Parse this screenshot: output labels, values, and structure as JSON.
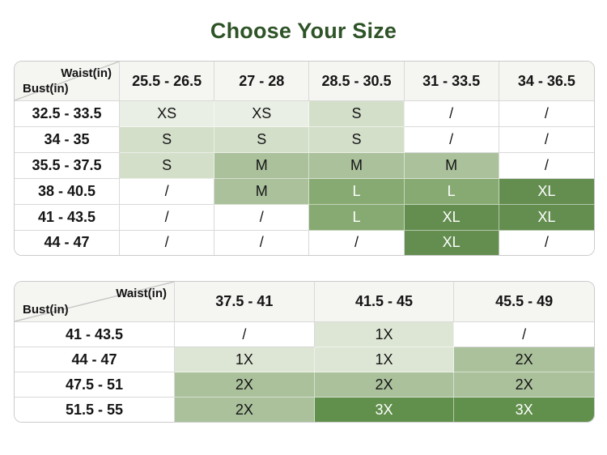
{
  "title": "Choose Your Size",
  "theme": {
    "title_color": "#2e5327",
    "header_bg": "#f5f5f2",
    "border_outer": "#cbcbcb",
    "border_inner": "#d9d9d9",
    "border_on_green": "rgba(255,255,255,0.5)",
    "text_dark": "#151515",
    "text_light": "#ffffff"
  },
  "palette": {
    "none": {
      "bg": "#ffffff",
      "text": "#151515"
    },
    "xs": {
      "bg": "#e9efe4",
      "text": "#151515"
    },
    "s": {
      "bg": "#d4dfca",
      "text": "#151515"
    },
    "m": {
      "bg": "#aac19c",
      "text": "#151515"
    },
    "l": {
      "bg": "#87aa72",
      "text": "#ffffff"
    },
    "xl": {
      "bg": "#648e50",
      "text": "#ffffff"
    },
    "x1": {
      "bg": "#dde6d4",
      "text": "#151515"
    },
    "x2": {
      "bg": "#aac19c",
      "text": "#151515"
    },
    "x3": {
      "bg": "#61904c",
      "text": "#ffffff"
    }
  },
  "tables": [
    {
      "name": "regular-sizes",
      "corner": {
        "top": "Waist(in)",
        "bottom": "Bust(in)"
      },
      "columns": [
        "25.5 - 26.5",
        "27 - 28",
        "28.5 - 30.5",
        "31 - 33.5",
        "34 - 36.5"
      ],
      "rows": [
        {
          "label": "32.5 - 33.5",
          "cells": [
            {
              "text": "XS",
              "tone": "xs"
            },
            {
              "text": "XS",
              "tone": "xs"
            },
            {
              "text": "S",
              "tone": "s"
            },
            {
              "text": "/",
              "tone": "none"
            },
            {
              "text": "/",
              "tone": "none"
            }
          ]
        },
        {
          "label": "34 - 35",
          "cells": [
            {
              "text": "S",
              "tone": "s"
            },
            {
              "text": "S",
              "tone": "s"
            },
            {
              "text": "S",
              "tone": "s"
            },
            {
              "text": "/",
              "tone": "none"
            },
            {
              "text": "/",
              "tone": "none"
            }
          ]
        },
        {
          "label": "35.5 - 37.5",
          "cells": [
            {
              "text": "S",
              "tone": "s"
            },
            {
              "text": "M",
              "tone": "m"
            },
            {
              "text": "M",
              "tone": "m"
            },
            {
              "text": "M",
              "tone": "m"
            },
            {
              "text": "/",
              "tone": "none"
            }
          ]
        },
        {
          "label": "38 - 40.5",
          "cells": [
            {
              "text": "/",
              "tone": "none"
            },
            {
              "text": "M",
              "tone": "m"
            },
            {
              "text": "L",
              "tone": "l"
            },
            {
              "text": "L",
              "tone": "l"
            },
            {
              "text": "XL",
              "tone": "xl"
            }
          ]
        },
        {
          "label": "41 - 43.5",
          "cells": [
            {
              "text": "/",
              "tone": "none"
            },
            {
              "text": "/",
              "tone": "none"
            },
            {
              "text": "L",
              "tone": "l"
            },
            {
              "text": "XL",
              "tone": "xl"
            },
            {
              "text": "XL",
              "tone": "xl"
            }
          ]
        },
        {
          "label": "44 - 47",
          "cells": [
            {
              "text": "/",
              "tone": "none"
            },
            {
              "text": "/",
              "tone": "none"
            },
            {
              "text": "/",
              "tone": "none"
            },
            {
              "text": "XL",
              "tone": "xl"
            },
            {
              "text": "/",
              "tone": "none"
            }
          ]
        }
      ]
    },
    {
      "name": "plus-sizes",
      "corner": {
        "top": "Waist(in)",
        "bottom": "Bust(in)"
      },
      "columns": [
        "37.5 - 41",
        "41.5 - 45",
        "45.5 - 49"
      ],
      "rows": [
        {
          "label": "41 - 43.5",
          "cells": [
            {
              "text": "/",
              "tone": "none"
            },
            {
              "text": "1X",
              "tone": "x1"
            },
            {
              "text": "/",
              "tone": "none"
            }
          ]
        },
        {
          "label": "44 - 47",
          "cells": [
            {
              "text": "1X",
              "tone": "x1"
            },
            {
              "text": "1X",
              "tone": "x1"
            },
            {
              "text": "2X",
              "tone": "x2"
            }
          ]
        },
        {
          "label": "47.5 - 51",
          "cells": [
            {
              "text": "2X",
              "tone": "x2"
            },
            {
              "text": "2X",
              "tone": "x2"
            },
            {
              "text": "2X",
              "tone": "x2"
            }
          ]
        },
        {
          "label": "51.5 - 55",
          "cells": [
            {
              "text": "2X",
              "tone": "x2"
            },
            {
              "text": "3X",
              "tone": "x3"
            },
            {
              "text": "3X",
              "tone": "x3"
            }
          ]
        }
      ]
    }
  ],
  "chart_data": [
    {
      "type": "table",
      "title": "Choose Your Size",
      "corner_labels": [
        "Waist(in)",
        "Bust(in)"
      ],
      "columns_waist_in": [
        "25.5 - 26.5",
        "27 - 28",
        "28.5 - 30.5",
        "31 - 33.5",
        "34 - 36.5"
      ],
      "rows_bust_in": [
        "32.5 - 33.5",
        "34 - 35",
        "35.5 - 37.5",
        "38 - 40.5",
        "41 - 43.5",
        "44 - 47"
      ],
      "values": [
        [
          "XS",
          "XS",
          "S",
          "/",
          "/"
        ],
        [
          "S",
          "S",
          "S",
          "/",
          "/"
        ],
        [
          "S",
          "M",
          "M",
          "M",
          "/"
        ],
        [
          "/",
          "M",
          "L",
          "L",
          "XL"
        ],
        [
          "/",
          "/",
          "L",
          "XL",
          "XL"
        ],
        [
          "/",
          "/",
          "/",
          "XL",
          "/"
        ]
      ]
    },
    {
      "type": "table",
      "corner_labels": [
        "Waist(in)",
        "Bust(in)"
      ],
      "columns_waist_in": [
        "37.5 - 41",
        "41.5 - 45",
        "45.5 - 49"
      ],
      "rows_bust_in": [
        "41 - 43.5",
        "44 - 47",
        "47.5 - 51",
        "51.5 - 55"
      ],
      "values": [
        [
          "/",
          "1X",
          "/"
        ],
        [
          "1X",
          "1X",
          "2X"
        ],
        [
          "2X",
          "2X",
          "2X"
        ],
        [
          "2X",
          "3X",
          "3X"
        ]
      ]
    }
  ]
}
